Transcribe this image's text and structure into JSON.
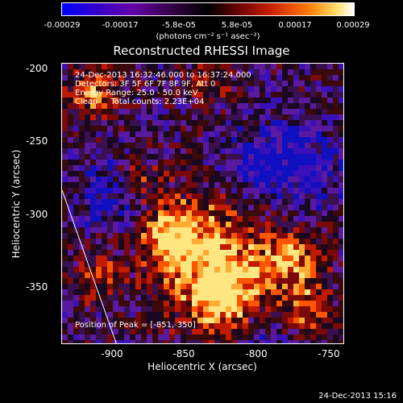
{
  "colorbar": {
    "ticks": [
      "-0.00029",
      "-0.00017",
      "-5.8e-05",
      "5.8e-05",
      "0.00017",
      "0.00029"
    ],
    "unit": "(photons cm⁻² s⁻¹ asec⁻²)"
  },
  "plot": {
    "title": "Reconstructed RHESSI Image",
    "annotations": {
      "time_range": "24-Dec-2013 16:32:46.000 to 16:37:24.000",
      "detectors": "Detectors: 3F 5F 6F 7F 8F 9F, Att 0",
      "energy_range": "Energy Range: 25.0 - 50.0 keV",
      "method": "Clean     Total counts: 2.23E+04",
      "peak": "Position of Peak = [-851,-350]"
    },
    "xlabel": "Heliocentric X (arcsec)",
    "ylabel": "Heliocentric Y (arcsec)",
    "xticks": [
      "-900",
      "-850",
      "-800",
      "-750"
    ],
    "yticks": [
      "-200",
      "-250",
      "-300",
      "-350"
    ]
  },
  "footer": {
    "timestamp": "24-Dec-2013 15:16"
  }
}
